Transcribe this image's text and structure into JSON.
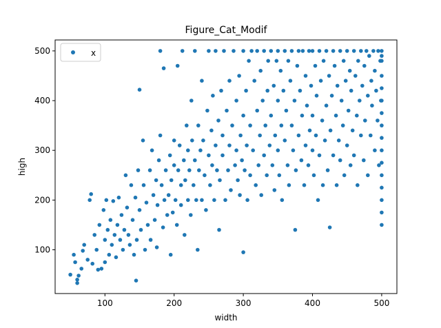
{
  "chart_data": {
    "type": "scatter",
    "title": "Figure_Cat_Modif",
    "xlabel": "width",
    "ylabel": "high",
    "xlim": [
      28,
      522
    ],
    "ylim": [
      12,
      522
    ],
    "x_ticks": [
      100,
      200,
      300,
      400,
      500
    ],
    "y_ticks": [
      100,
      200,
      300,
      400,
      500
    ],
    "grid": false,
    "legend": {
      "position": "top-left"
    },
    "series": [
      {
        "name": "x",
        "color": "#1f77b4",
        "marker": "circle",
        "points": [
          [
            50,
            50
          ],
          [
            55,
            90
          ],
          [
            57,
            75
          ],
          [
            60,
            40
          ],
          [
            60,
            33
          ],
          [
            62,
            48
          ],
          [
            66,
            62
          ],
          [
            68,
            98
          ],
          [
            70,
            110
          ],
          [
            75,
            80
          ],
          [
            78,
            200
          ],
          [
            80,
            212
          ],
          [
            82,
            72
          ],
          [
            85,
            130
          ],
          [
            88,
            100
          ],
          [
            90,
            60
          ],
          [
            92,
            150
          ],
          [
            95,
            62
          ],
          [
            98,
            180
          ],
          [
            100,
            120
          ],
          [
            100,
            75
          ],
          [
            102,
            200
          ],
          [
            104,
            140
          ],
          [
            106,
            90
          ],
          [
            108,
            160
          ],
          [
            110,
            110
          ],
          [
            112,
            198
          ],
          [
            114,
            130
          ],
          [
            116,
            85
          ],
          [
            118,
            150
          ],
          [
            120,
            205
          ],
          [
            122,
            120
          ],
          [
            124,
            170
          ],
          [
            126,
            100
          ],
          [
            128,
            140
          ],
          [
            130,
            250
          ],
          [
            132,
            185
          ],
          [
            134,
            130
          ],
          [
            136,
            110
          ],
          [
            138,
            230
          ],
          [
            140,
            160
          ],
          [
            142,
            90
          ],
          [
            144,
            205
          ],
          [
            145,
            38
          ],
          [
            146,
            120
          ],
          [
            148,
            260
          ],
          [
            150,
            422
          ],
          [
            150,
            180
          ],
          [
            152,
            140
          ],
          [
            155,
            320
          ],
          [
            156,
            230
          ],
          [
            158,
            100
          ],
          [
            160,
            195
          ],
          [
            162,
            150
          ],
          [
            165,
            260
          ],
          [
            166,
            120
          ],
          [
            168,
            300
          ],
          [
            170,
            210
          ],
          [
            172,
            160
          ],
          [
            174,
            240
          ],
          [
            175,
            105
          ],
          [
            176,
            190
          ],
          [
            178,
            280
          ],
          [
            180,
            330
          ],
          [
            180,
            500
          ],
          [
            182,
            230
          ],
          [
            184,
            145
          ],
          [
            185,
            465
          ],
          [
            186,
            200
          ],
          [
            188,
            260
          ],
          [
            190,
            170
          ],
          [
            192,
            210
          ],
          [
            194,
            290
          ],
          [
            195,
            90
          ],
          [
            196,
            240
          ],
          [
            198,
            175
          ],
          [
            200,
            270
          ],
          [
            200,
            320
          ],
          [
            202,
            200
          ],
          [
            204,
            150
          ],
          [
            205,
            470
          ],
          [
            206,
            260
          ],
          [
            208,
            310
          ],
          [
            210,
            230
          ],
          [
            210,
            190
          ],
          [
            212,
            500
          ],
          [
            214,
            280
          ],
          [
            215,
            130
          ],
          [
            216,
            240
          ],
          [
            218,
            350
          ],
          [
            220,
            200
          ],
          [
            220,
            300
          ],
          [
            222,
            260
          ],
          [
            224,
            170
          ],
          [
            225,
            400
          ],
          [
            226,
            320
          ],
          [
            228,
            230
          ],
          [
            230,
            500
          ],
          [
            230,
            280
          ],
          [
            232,
            200
          ],
          [
            234,
            100
          ],
          [
            235,
            350
          ],
          [
            236,
            260
          ],
          [
            238,
            300
          ],
          [
            240,
            200
          ],
          [
            240,
            440
          ],
          [
            242,
            320
          ],
          [
            244,
            250
          ],
          [
            246,
            180
          ],
          [
            248,
            380
          ],
          [
            250,
            500
          ],
          [
            250,
            290
          ],
          [
            252,
            230
          ],
          [
            254,
            340
          ],
          [
            255,
            270
          ],
          [
            256,
            410
          ],
          [
            258,
            200
          ],
          [
            260,
            310
          ],
          [
            260,
            500
          ],
          [
            262,
            260
          ],
          [
            264,
            360
          ],
          [
            265,
            140
          ],
          [
            266,
            240
          ],
          [
            268,
            420
          ],
          [
            270,
            290
          ],
          [
            270,
            330
          ],
          [
            272,
            500
          ],
          [
            274,
            200
          ],
          [
            276,
            380
          ],
          [
            278,
            260
          ],
          [
            280,
            310
          ],
          [
            280,
            440
          ],
          [
            282,
            220
          ],
          [
            284,
            350
          ],
          [
            286,
            500
          ],
          [
            288,
            270
          ],
          [
            290,
            400
          ],
          [
            290,
            300
          ],
          [
            292,
            240
          ],
          [
            294,
            450
          ],
          [
            295,
            210
          ],
          [
            296,
            330
          ],
          [
            298,
            280
          ],
          [
            300,
            500
          ],
          [
            300,
            95
          ],
          [
            300,
            370
          ],
          [
            302,
            260
          ],
          [
            304,
            420
          ],
          [
            305,
            310
          ],
          [
            306,
            200
          ],
          [
            308,
            480
          ],
          [
            310,
            350
          ],
          [
            310,
            250
          ],
          [
            312,
            500
          ],
          [
            314,
            300
          ],
          [
            316,
            440
          ],
          [
            318,
            230
          ],
          [
            320,
            380
          ],
          [
            320,
            500
          ],
          [
            322,
            270
          ],
          [
            324,
            330
          ],
          [
            325,
            460
          ],
          [
            326,
            210
          ],
          [
            328,
            400
          ],
          [
            330,
            500
          ],
          [
            330,
            290
          ],
          [
            332,
            350
          ],
          [
            334,
            250
          ],
          [
            335,
            420
          ],
          [
            336,
            480
          ],
          [
            338,
            310
          ],
          [
            340,
            500
          ],
          [
            340,
            370
          ],
          [
            342,
            270
          ],
          [
            344,
            430
          ],
          [
            345,
            220
          ],
          [
            346,
            330
          ],
          [
            348,
            480
          ],
          [
            350,
            500
          ],
          [
            350,
            300
          ],
          [
            350,
            400
          ],
          [
            352,
            250
          ],
          [
            354,
            460
          ],
          [
            355,
            350
          ],
          [
            356,
            200
          ],
          [
            358,
            420
          ],
          [
            360,
            500
          ],
          [
            360,
            320
          ],
          [
            362,
            380
          ],
          [
            364,
            270
          ],
          [
            365,
            480
          ],
          [
            366,
            230
          ],
          [
            368,
            440
          ],
          [
            370,
            500
          ],
          [
            370,
            350
          ],
          [
            372,
            300
          ],
          [
            374,
            400
          ],
          [
            375,
            140
          ],
          [
            376,
            260
          ],
          [
            378,
            470
          ],
          [
            380,
            500
          ],
          [
            380,
            330
          ],
          [
            382,
            420
          ],
          [
            384,
            280
          ],
          [
            385,
            370
          ],
          [
            386,
            500
          ],
          [
            388,
            230
          ],
          [
            390,
            450
          ],
          [
            390,
            310
          ],
          [
            392,
            390
          ],
          [
            394,
            270
          ],
          [
            395,
            500
          ],
          [
            396,
            340
          ],
          [
            398,
            430
          ],
          [
            400,
            500
          ],
          [
            400,
            300
          ],
          [
            400,
            370
          ],
          [
            402,
            250
          ],
          [
            404,
            470
          ],
          [
            405,
            330
          ],
          [
            406,
            410
          ],
          [
            408,
            200
          ],
          [
            410,
            500
          ],
          [
            410,
            290
          ],
          [
            412,
            440
          ],
          [
            414,
            360
          ],
          [
            415,
            230
          ],
          [
            416,
            480
          ],
          [
            418,
            320
          ],
          [
            420,
            500
          ],
          [
            420,
            390
          ],
          [
            422,
            260
          ],
          [
            424,
            450
          ],
          [
            425,
            145
          ],
          [
            426,
            340
          ],
          [
            428,
            410
          ],
          [
            430,
            500
          ],
          [
            430,
            290
          ],
          [
            432,
            470
          ],
          [
            434,
            370
          ],
          [
            435,
            230
          ],
          [
            436,
            430
          ],
          [
            438,
            320
          ],
          [
            440,
            500
          ],
          [
            440,
            280
          ],
          [
            442,
            400
          ],
          [
            444,
            350
          ],
          [
            445,
            480
          ],
          [
            446,
            250
          ],
          [
            448,
            440
          ],
          [
            450,
            500
          ],
          [
            450,
            310
          ],
          [
            452,
            380
          ],
          [
            454,
            460
          ],
          [
            455,
            270
          ],
          [
            456,
            420
          ],
          [
            458,
            340
          ],
          [
            460,
            500
          ],
          [
            460,
            290
          ],
          [
            462,
            450
          ],
          [
            464,
            370
          ],
          [
            465,
            230
          ],
          [
            466,
            480
          ],
          [
            468,
            400
          ],
          [
            470,
            500
          ],
          [
            470,
            330
          ],
          [
            472,
            430
          ],
          [
            474,
            280
          ],
          [
            475,
            470
          ],
          [
            476,
            360
          ],
          [
            478,
            500
          ],
          [
            480,
            410
          ],
          [
            480,
            250
          ],
          [
            482,
            490
          ],
          [
            484,
            330
          ],
          [
            485,
            440
          ],
          [
            486,
            390
          ],
          [
            488,
            500
          ],
          [
            490,
            300
          ],
          [
            490,
            460
          ],
          [
            492,
            420
          ],
          [
            494,
            360
          ],
          [
            495,
            500
          ],
          [
            496,
            270
          ],
          [
            498,
            480
          ],
          [
            499,
            400
          ],
          [
            500,
            500
          ],
          [
            500,
            150
          ],
          [
            500,
            200
          ],
          [
            500,
            250
          ],
          [
            500,
            300
          ],
          [
            500,
            350
          ],
          [
            500,
            400
          ],
          [
            500,
            450
          ],
          [
            500,
            480
          ],
          [
            500,
            175
          ],
          [
            500,
            225
          ],
          [
            500,
            275
          ],
          [
            500,
            325
          ],
          [
            500,
            375
          ],
          [
            500,
            425
          ],
          [
            500,
            490
          ]
        ]
      }
    ]
  }
}
